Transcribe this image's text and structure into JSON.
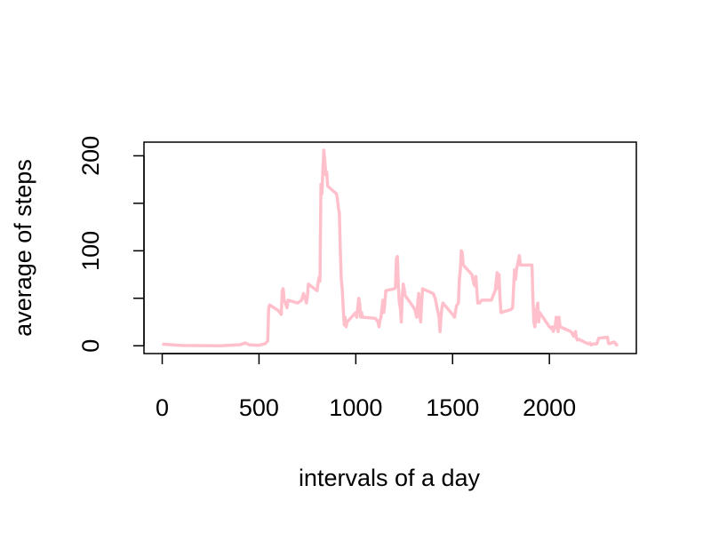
{
  "chart_data": {
    "type": "line",
    "xlabel": "intervals of a day",
    "ylabel": "average of steps",
    "color": "#ffc0cb",
    "x": [
      0,
      100,
      300,
      400,
      430,
      450,
      500,
      530,
      545,
      550,
      555,
      600,
      615,
      620,
      625,
      630,
      645,
      650,
      700,
      720,
      730,
      745,
      750,
      755,
      800,
      805,
      810,
      815,
      820,
      825,
      830,
      835,
      840,
      845,
      850,
      855,
      900,
      905,
      910,
      915,
      920,
      925,
      930,
      935,
      940,
      945,
      950,
      955,
      1000,
      1005,
      1010,
      1015,
      1020,
      1025,
      1030,
      1035,
      1100,
      1115,
      1120,
      1125,
      1130,
      1140,
      1145,
      1150,
      1155,
      1200,
      1205,
      1210,
      1215,
      1220,
      1225,
      1230,
      1235,
      1240,
      1245,
      1250,
      1255,
      1300,
      1305,
      1315,
      1320,
      1325,
      1330,
      1335,
      1340,
      1345,
      1400,
      1410,
      1420,
      1430,
      1435,
      1440,
      1445,
      1450,
      1500,
      1510,
      1520,
      1530,
      1535,
      1540,
      1545,
      1550,
      1555,
      1600,
      1610,
      1615,
      1620,
      1625,
      1630,
      1640,
      1650,
      1700,
      1710,
      1720,
      1730,
      1735,
      1740,
      1745,
      1750,
      1800,
      1810,
      1820,
      1825,
      1830,
      1845,
      1850,
      1900,
      1910,
      1915,
      1920,
      1925,
      1930,
      1935,
      1940,
      1945,
      1950,
      2000,
      2010,
      2015,
      2020,
      2030,
      2035,
      2040,
      2045,
      2050,
      2055,
      2100,
      2110,
      2115,
      2120,
      2125,
      2135,
      2140,
      2145,
      2150,
      2200,
      2210,
      2215,
      2230,
      2245,
      2250,
      2255,
      2300,
      2305,
      2310,
      2320,
      2335,
      2340,
      2345,
      2350,
      2355
    ],
    "values": [
      1.7,
      0.3,
      0,
      1,
      3,
      1,
      0.5,
      2,
      5,
      40,
      43,
      37,
      33,
      58,
      60,
      48,
      40,
      48,
      45,
      48,
      55,
      45,
      52,
      65,
      58,
      66,
      72,
      68,
      170,
      160,
      185,
      206,
      195,
      180,
      183,
      168,
      160,
      155,
      145,
      140,
      100,
      70,
      60,
      40,
      22,
      30,
      20,
      25,
      35,
      30,
      40,
      50,
      45,
      30,
      35,
      30,
      29,
      25,
      20,
      27,
      30,
      48,
      35,
      45,
      58,
      60,
      62,
      92,
      94,
      62,
      45,
      40,
      25,
      52,
      65,
      60,
      53,
      40,
      38,
      30,
      45,
      55,
      35,
      25,
      45,
      60,
      55,
      50,
      40,
      30,
      15,
      30,
      40,
      45,
      33,
      30,
      42,
      45,
      70,
      80,
      100,
      98,
      85,
      75,
      65,
      63,
      73,
      60,
      45,
      45,
      48,
      48,
      53,
      58,
      77,
      60,
      75,
      50,
      35,
      38,
      40,
      80,
      70,
      80,
      95,
      85,
      85,
      85,
      50,
      25,
      20,
      30,
      40,
      45,
      25,
      35,
      20,
      18,
      20,
      15,
      20,
      30,
      25,
      15,
      30,
      20,
      16,
      15,
      14,
      12,
      10,
      15,
      8,
      6,
      7,
      2,
      3,
      1,
      2,
      2,
      5,
      8,
      9,
      3,
      2,
      3,
      4,
      3,
      1,
      1,
      1
    ],
    "xlim": [
      -94.2,
      2449.2
    ],
    "ylim": [
      -8.2,
      214.4
    ],
    "xticks": [
      0,
      500,
      1000,
      1500,
      2000
    ],
    "yticks": [
      0,
      100,
      200
    ],
    "y_minor_ticks": [
      50,
      150
    ]
  }
}
